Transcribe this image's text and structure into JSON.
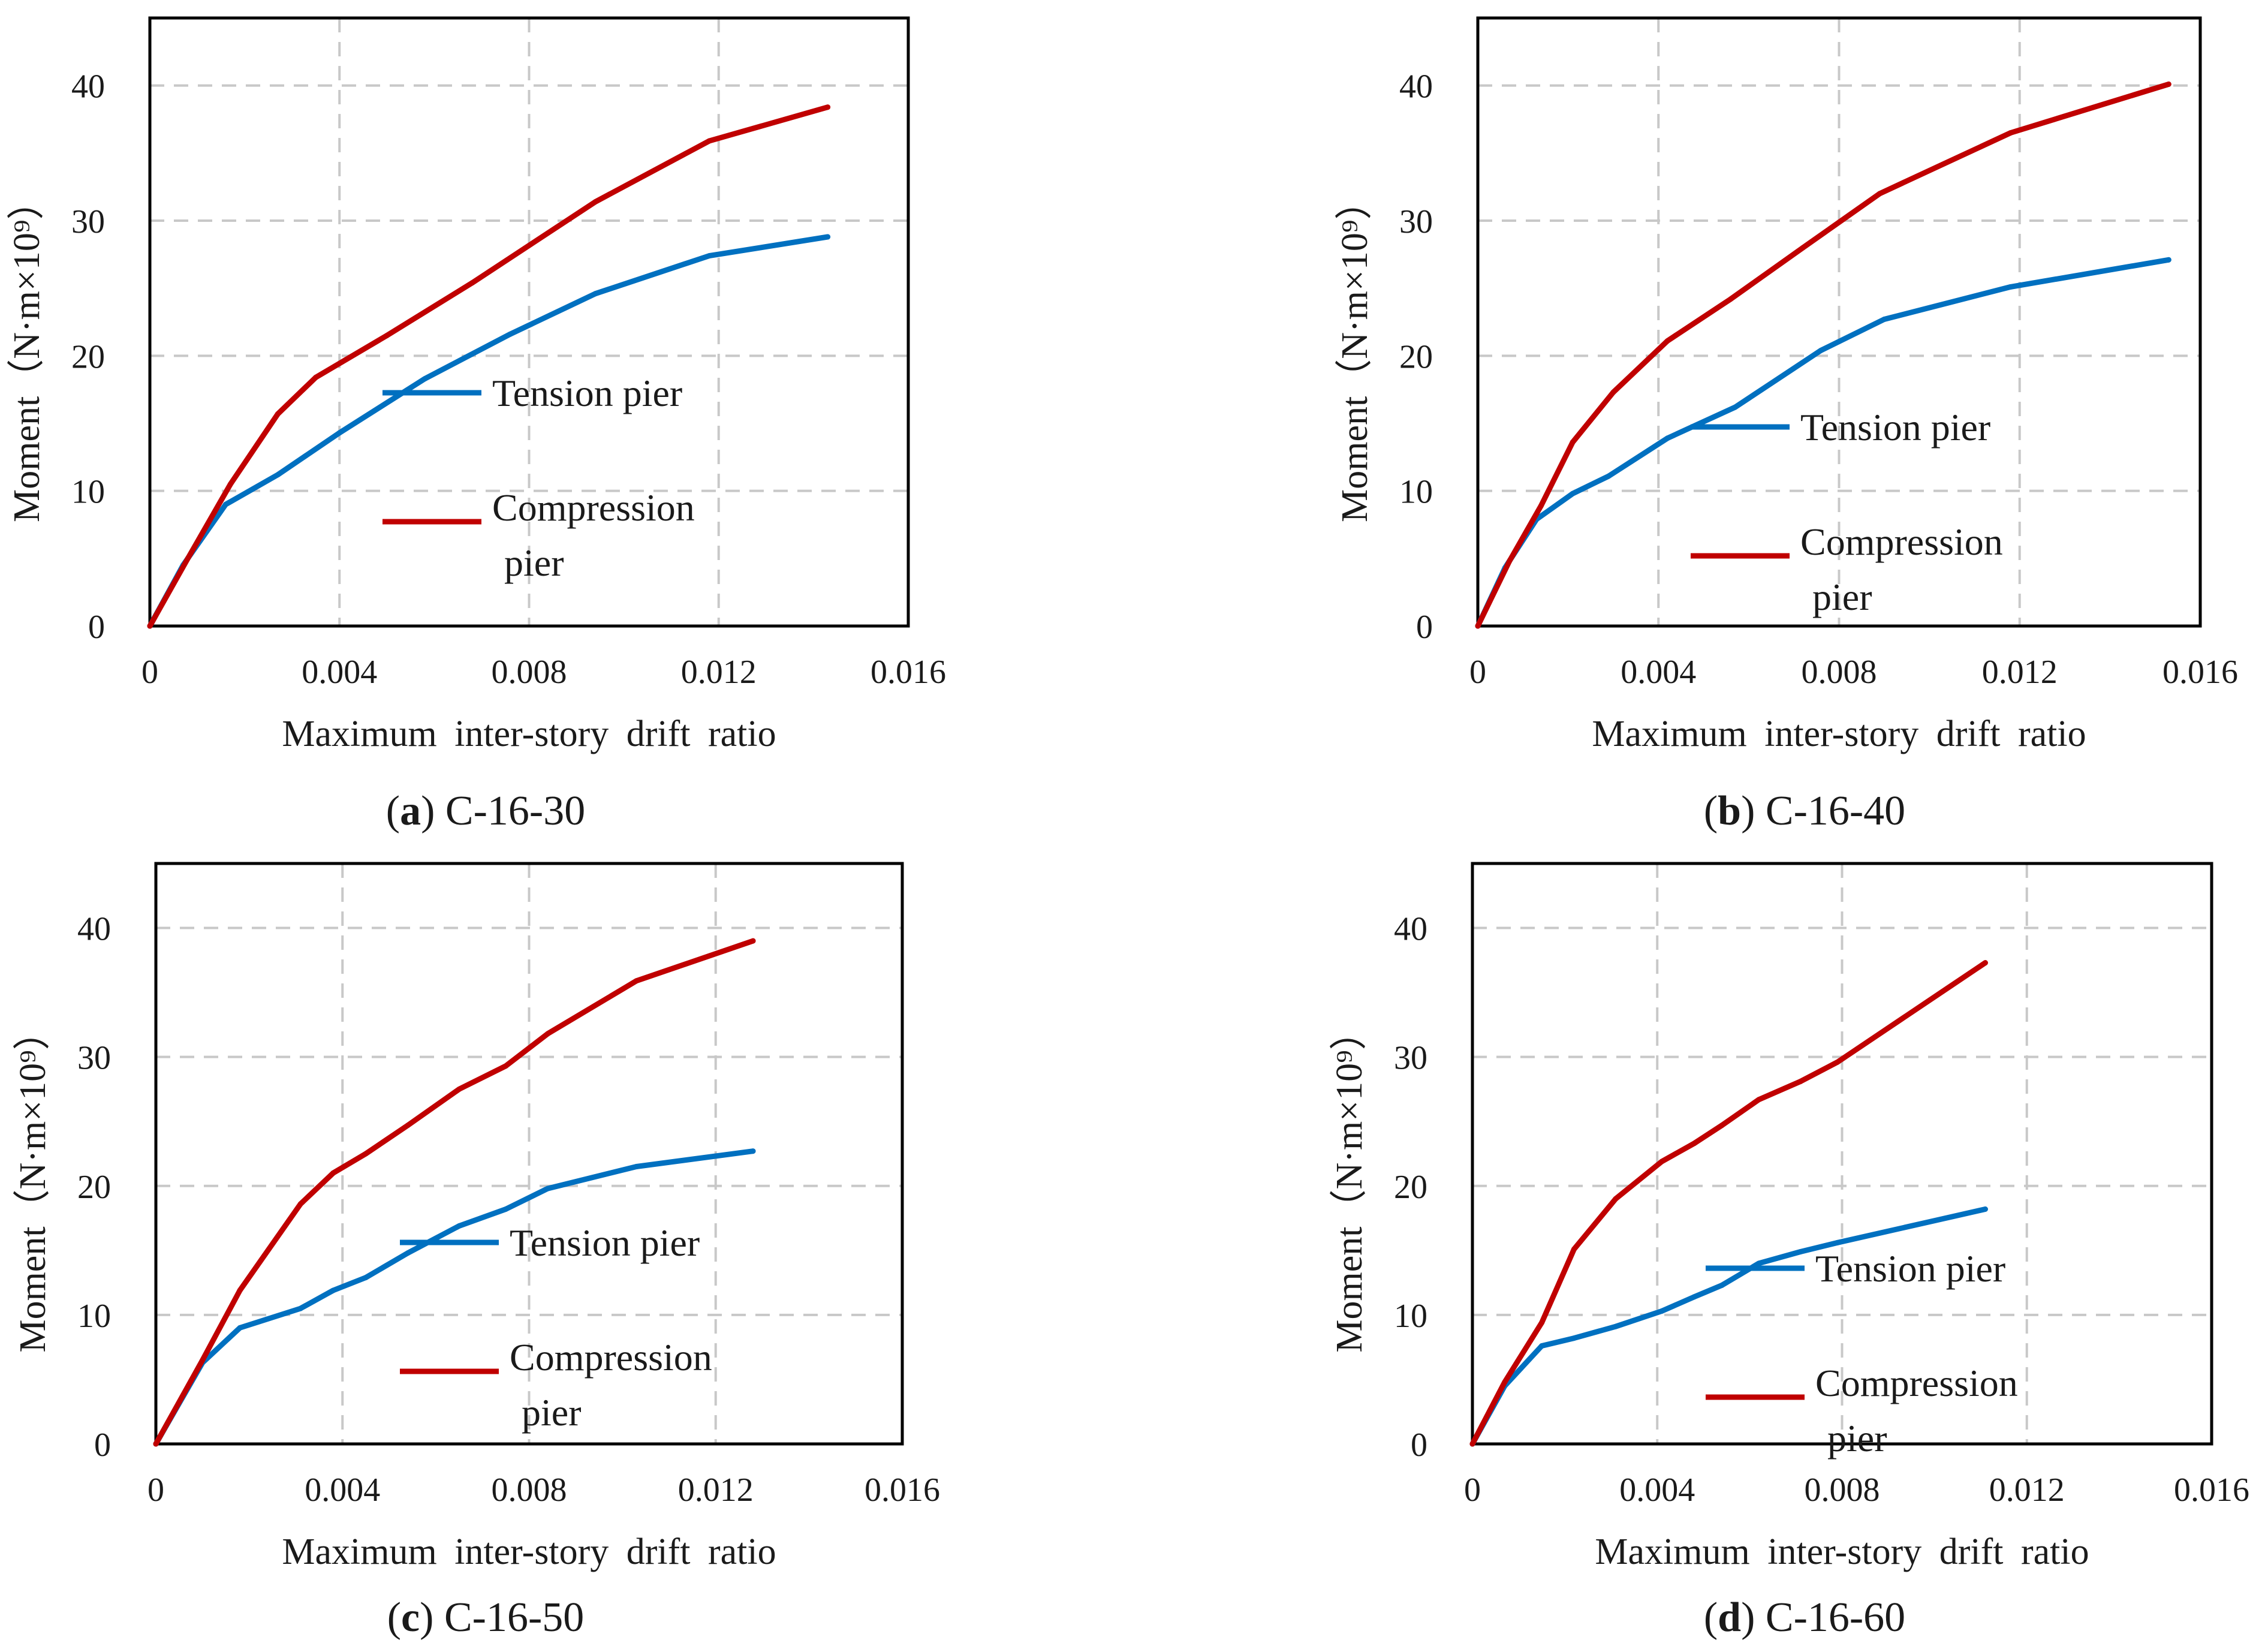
{
  "colors": {
    "tension": "#0070C0",
    "compression": "#C00000"
  },
  "legend": {
    "tension_label": "Tension pier",
    "compression_label_line1": "Compression",
    "compression_label_line2": "pier"
  },
  "chart_data": [
    {
      "type": "line",
      "caption_letter": "a",
      "caption_name": "C-16-30",
      "xlabel": "Maximum inter-story drift ratio",
      "ylabel": "Moment（N·m×10⁹）",
      "xlim": [
        0,
        0.016
      ],
      "ylim": [
        0,
        45
      ],
      "xticks": [
        "0",
        "0.004",
        "0.008",
        "0.012",
        "0.016"
      ],
      "yticks": [
        "0",
        "10",
        "20",
        "30",
        "40"
      ],
      "series": [
        {
          "name": "Tension pier",
          "x": [
            0,
            0.0007,
            0.0016,
            0.0027,
            0.004,
            0.0058,
            0.0076,
            0.0094,
            0.0118,
            0.0143
          ],
          "y": [
            0,
            4.5,
            9,
            11.2,
            14.3,
            18.3,
            21.6,
            24.6,
            27.4,
            28.8
          ]
        },
        {
          "name": "Compression pier",
          "x": [
            0,
            0.0008,
            0.0017,
            0.0027,
            0.0035,
            0.005,
            0.0068,
            0.0094,
            0.0118,
            0.0143
          ],
          "y": [
            0,
            5,
            10.5,
            15.7,
            18.4,
            21.5,
            25.4,
            31.4,
            35.9,
            38.4
          ]
        }
      ]
    },
    {
      "type": "line",
      "caption_letter": "b",
      "caption_name": "C-16-40",
      "xlabel": "Maximum inter-story drift ratio",
      "ylabel": "Moment（N·m×10⁹）",
      "xlim": [
        0,
        0.016
      ],
      "ylim": [
        0,
        45
      ],
      "xticks": [
        "0",
        "0.004",
        "0.008",
        "0.012",
        "0.016"
      ],
      "yticks": [
        "0",
        "10",
        "20",
        "30",
        "40"
      ],
      "series": [
        {
          "name": "Tension pier",
          "x": [
            0,
            0.0006,
            0.0013,
            0.0021,
            0.0029,
            0.0042,
            0.0057,
            0.0076,
            0.009,
            0.0118,
            0.0153
          ],
          "y": [
            0,
            4.3,
            7.9,
            9.8,
            11.1,
            13.9,
            16.2,
            20.4,
            22.7,
            25.1,
            27.1
          ]
        },
        {
          "name": "Compression pier",
          "x": [
            0,
            0.0007,
            0.0014,
            0.0021,
            0.003,
            0.0042,
            0.0056,
            0.0072,
            0.0089,
            0.0118,
            0.0153
          ],
          "y": [
            0,
            4.8,
            8.9,
            13.6,
            17.3,
            21.1,
            24.2,
            28,
            32,
            36.5,
            40.1
          ]
        }
      ]
    },
    {
      "type": "line",
      "caption_letter": "c",
      "caption_name": "C-16-50",
      "xlabel": "Maximum inter-story drift ratio",
      "ylabel": "Moment（N·m×10⁹）",
      "xlim": [
        0,
        0.016
      ],
      "ylim": [
        0,
        45
      ],
      "xticks": [
        "0",
        "0.004",
        "0.008",
        "0.012",
        "0.016"
      ],
      "yticks": [
        "0",
        "10",
        "20",
        "30",
        "40"
      ],
      "series": [
        {
          "name": "Tension pier",
          "x": [
            0,
            0.001,
            0.0018,
            0.0031,
            0.0038,
            0.0045,
            0.0054,
            0.0065,
            0.0075,
            0.0084,
            0.0103,
            0.0128
          ],
          "y": [
            0,
            6.3,
            9,
            10.5,
            11.9,
            12.9,
            14.8,
            16.9,
            18.2,
            19.8,
            21.5,
            22.7
          ]
        },
        {
          "name": "Compression pier",
          "x": [
            0,
            0.001,
            0.0018,
            0.0031,
            0.0038,
            0.0045,
            0.0054,
            0.0065,
            0.0075,
            0.0084,
            0.0103,
            0.0128
          ],
          "y": [
            0,
            6.5,
            11.9,
            18.6,
            21,
            22.5,
            24.7,
            27.5,
            29.3,
            31.8,
            35.9,
            39
          ]
        }
      ]
    },
    {
      "type": "line",
      "caption_letter": "d",
      "caption_name": "C-16-60",
      "xlabel": "Maximum inter-story drift ratio",
      "ylabel": "Moment（N·m×10⁹）",
      "xlim": [
        0,
        0.016
      ],
      "ylim": [
        0,
        45
      ],
      "xticks": [
        "0",
        "0.004",
        "0.008",
        "0.012",
        "0.016"
      ],
      "yticks": [
        "0",
        "10",
        "20",
        "30",
        "40"
      ],
      "series": [
        {
          "name": "Tension pier",
          "x": [
            0,
            0.0007,
            0.0015,
            0.0022,
            0.0031,
            0.0041,
            0.0048,
            0.0054,
            0.0062,
            0.0071,
            0.0079,
            0.0111
          ],
          "y": [
            0,
            4.5,
            7.6,
            8.2,
            9.1,
            10.3,
            11.4,
            12.3,
            14,
            14.9,
            15.6,
            18.2
          ]
        },
        {
          "name": "Compression pier",
          "x": [
            0,
            0.0007,
            0.0015,
            0.0022,
            0.0031,
            0.0041,
            0.0048,
            0.0054,
            0.0062,
            0.0071,
            0.0079,
            0.0111
          ],
          "y": [
            0,
            4.8,
            9.4,
            15.1,
            19,
            21.9,
            23.3,
            24.7,
            26.7,
            28.1,
            29.6,
            37.3
          ]
        }
      ]
    }
  ]
}
